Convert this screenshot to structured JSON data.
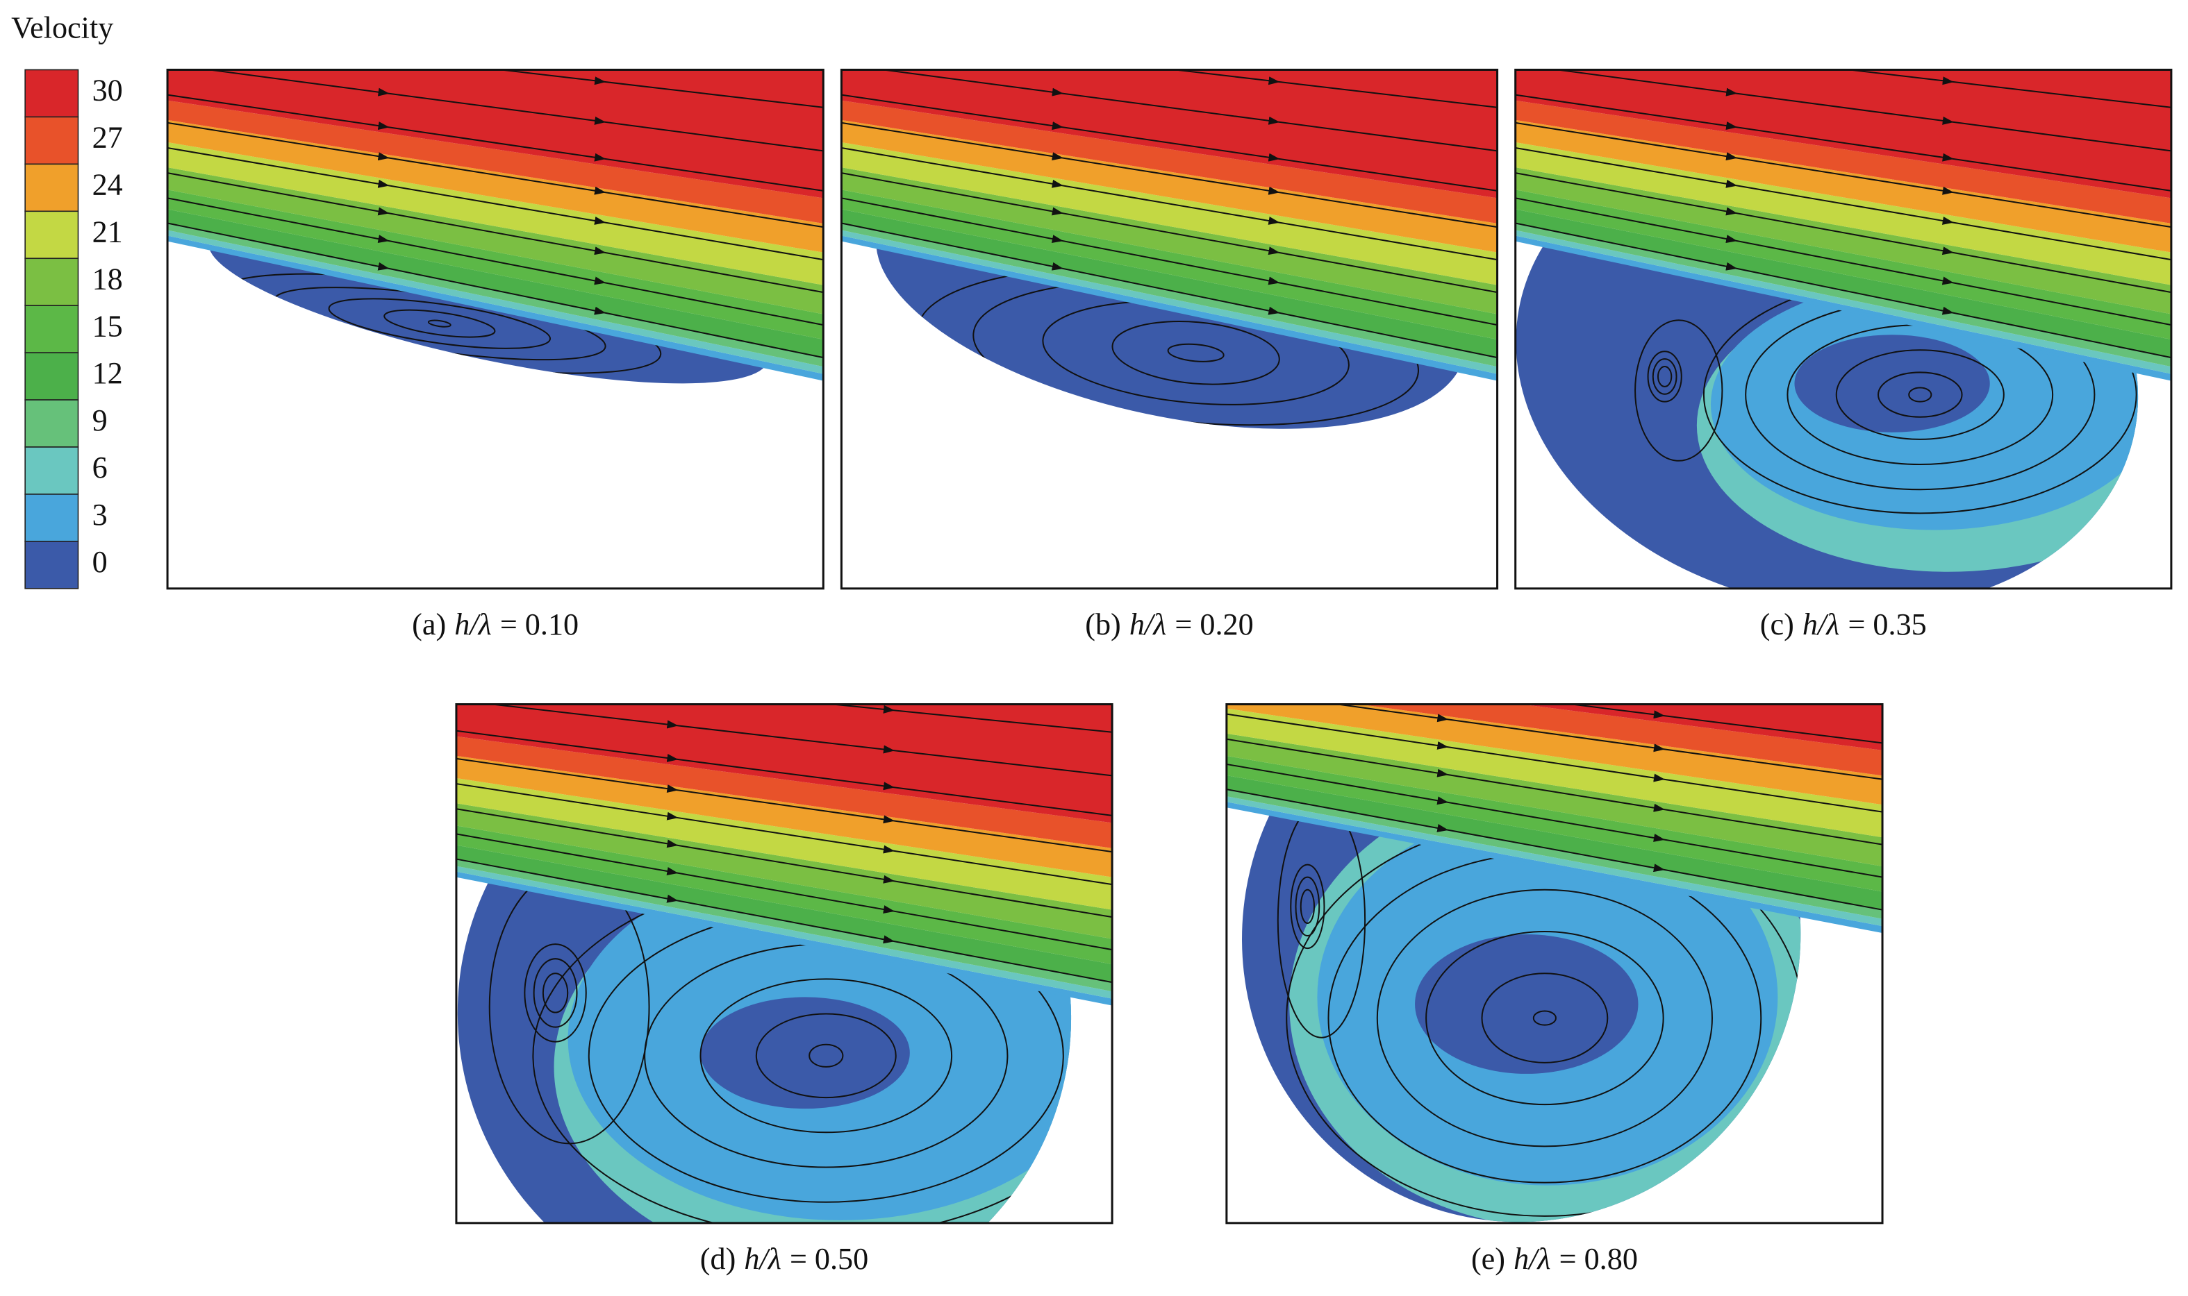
{
  "colorbar": {
    "title": "Velocity",
    "levels": [
      30,
      27,
      24,
      21,
      18,
      15,
      12,
      9,
      6,
      3,
      0
    ],
    "colors": [
      "#d9262a",
      "#e8522a",
      "#f0a02b",
      "#c3d844",
      "#7bbf43",
      "#5cb847",
      "#4cb04a",
      "#66c17a",
      "#6ac7c0",
      "#49a6dc",
      "#3b5aa9"
    ]
  },
  "panels": [
    {
      "label": "(a)",
      "variable": "h/λ",
      "value": "= 0.10"
    },
    {
      "label": "(b)",
      "variable": "h/λ",
      "value": "= 0.20"
    },
    {
      "label": "(c)",
      "variable": "h/λ",
      "value": "= 0.35"
    },
    {
      "label": "(d)",
      "variable": "h/λ",
      "value": "= 0.50"
    },
    {
      "label": "(e)",
      "variable": "h/λ",
      "value": "= 0.80"
    }
  ]
}
